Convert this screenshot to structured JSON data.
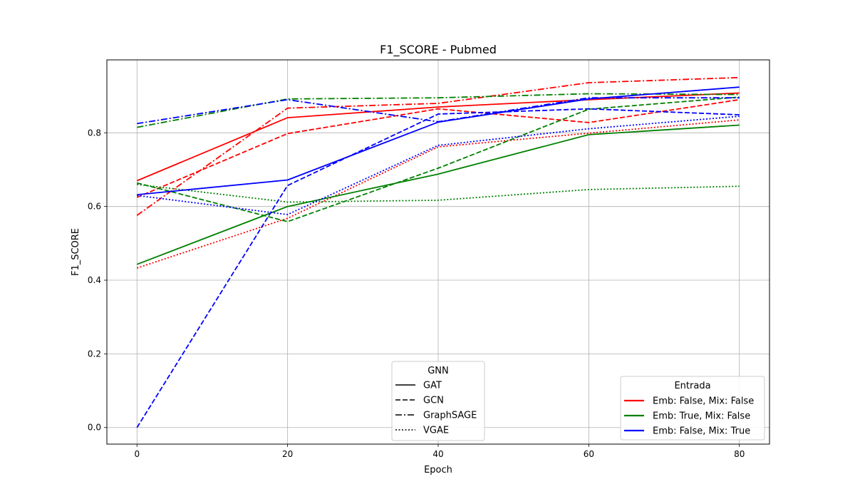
{
  "chart_data": {
    "type": "line",
    "title": "F1_SCORE - Pubmed",
    "xlabel": "Epoch",
    "ylabel": "F1_SCORE",
    "x": [
      0,
      20,
      40,
      60,
      80
    ],
    "xlim": [
      -4,
      84
    ],
    "ylim": [
      -0.045,
      0.998
    ],
    "xticks": [
      0,
      20,
      40,
      60,
      80
    ],
    "yticks": [
      0.0,
      0.2,
      0.4,
      0.6,
      0.8
    ],
    "ytick_labels": [
      "0.0",
      "0.2",
      "0.4",
      "0.6",
      "0.8"
    ],
    "grid": true,
    "colors": {
      "red": "#ff0000",
      "green": "#008000",
      "blue": "#0000ff"
    },
    "legend_gnn": {
      "title": "GNN",
      "placement": "lower-center",
      "entries": [
        {
          "label": "GAT",
          "style": "solid"
        },
        {
          "label": "GCN",
          "style": "dashed"
        },
        {
          "label": "GraphSAGE",
          "style": "dashdot"
        },
        {
          "label": "VGAE",
          "style": "dotted"
        }
      ]
    },
    "legend_entrada": {
      "title": "Entrada",
      "placement": "lower-right",
      "entries": [
        {
          "label": "Emb: False, Mix: False",
          "color": "red"
        },
        {
          "label": "Emb: True, Mix: False",
          "color": "green"
        },
        {
          "label": "Emb: False, Mix: True",
          "color": "blue"
        }
      ]
    },
    "series": [
      {
        "gnn": "GAT",
        "entrada": "Emb: False, Mix: False",
        "color": "red",
        "style": "solid",
        "values": [
          0.67,
          0.841,
          0.87,
          0.89,
          0.908
        ]
      },
      {
        "gnn": "GCN",
        "entrada": "Emb: False, Mix: False",
        "color": "red",
        "style": "dashed",
        "values": [
          0.625,
          0.798,
          0.865,
          0.828,
          0.89
        ]
      },
      {
        "gnn": "GraphSAGE",
        "entrada": "Emb: False, Mix: False",
        "color": "red",
        "style": "dashdot",
        "values": [
          0.576,
          0.867,
          0.88,
          0.936,
          0.95
        ]
      },
      {
        "gnn": "VGAE",
        "entrada": "Emb: False, Mix: False",
        "color": "red",
        "style": "dotted",
        "values": [
          0.433,
          0.568,
          0.762,
          0.799,
          0.835
        ]
      },
      {
        "gnn": "GAT",
        "entrada": "Emb: True, Mix: False",
        "color": "green",
        "style": "solid",
        "values": [
          0.443,
          0.6,
          0.688,
          0.795,
          0.821
        ]
      },
      {
        "gnn": "GCN",
        "entrada": "Emb: True, Mix: False",
        "color": "green",
        "style": "dashed",
        "values": [
          0.664,
          0.559,
          0.704,
          0.864,
          0.897
        ]
      },
      {
        "gnn": "GraphSAGE",
        "entrada": "Emb: True, Mix: False",
        "color": "green",
        "style": "dashdot",
        "values": [
          0.815,
          0.892,
          0.895,
          0.906,
          0.904
        ]
      },
      {
        "gnn": "VGAE",
        "entrada": "Emb: True, Mix: False",
        "color": "green",
        "style": "dotted",
        "values": [
          0.66,
          0.612,
          0.617,
          0.646,
          0.655
        ]
      },
      {
        "gnn": "GAT",
        "entrada": "Emb: False, Mix: True",
        "color": "blue",
        "style": "solid",
        "values": [
          0.632,
          0.672,
          0.829,
          0.892,
          0.924
        ]
      },
      {
        "gnn": "GCN",
        "entrada": "Emb: False, Mix: True",
        "color": "blue",
        "style": "dashed",
        "values": [
          0.0,
          0.657,
          0.851,
          0.865,
          0.849
        ]
      },
      {
        "gnn": "GraphSAGE",
        "entrada": "Emb: False, Mix: True",
        "color": "blue",
        "style": "dashdot",
        "values": [
          0.825,
          0.89,
          0.83,
          0.895,
          0.895
        ]
      },
      {
        "gnn": "VGAE",
        "entrada": "Emb: False, Mix: True",
        "color": "blue",
        "style": "dotted",
        "values": [
          0.63,
          0.578,
          0.766,
          0.811,
          0.845
        ]
      }
    ]
  }
}
